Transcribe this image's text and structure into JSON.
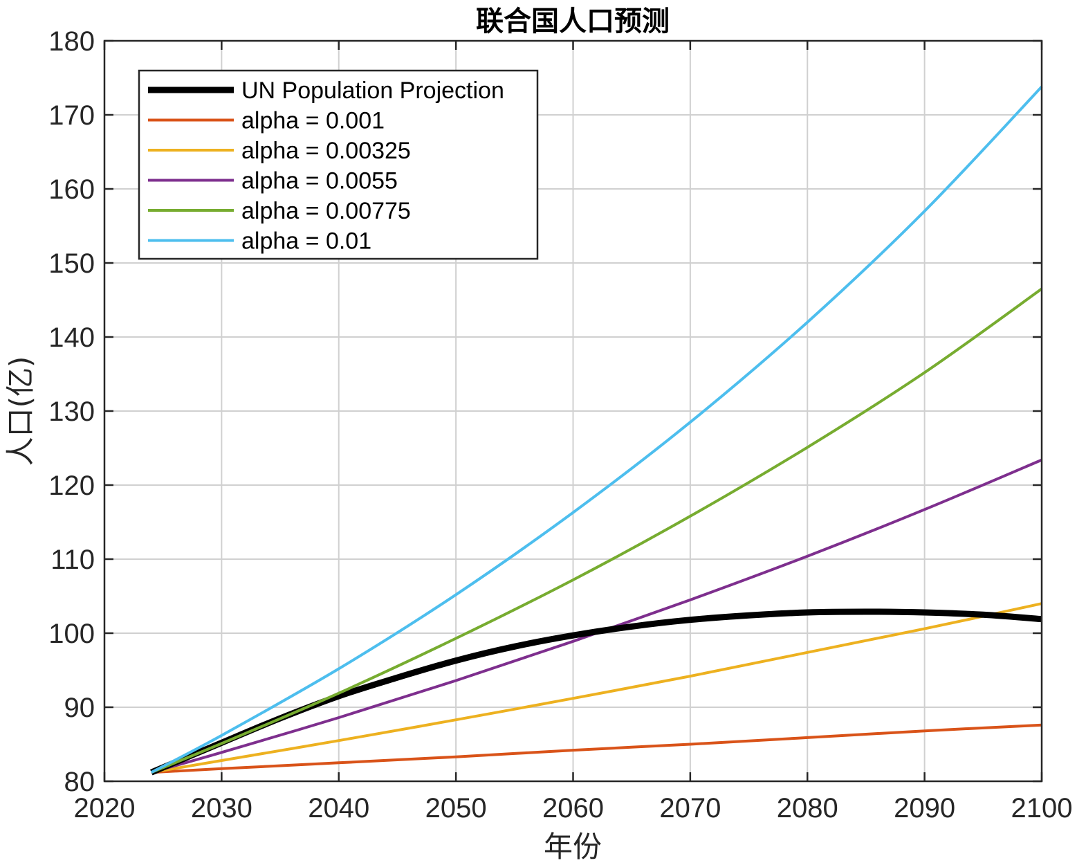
{
  "chart_data": {
    "type": "line",
    "title": "联合国人口预测",
    "xlabel": "年份",
    "ylabel": "人口(亿)",
    "xlim": [
      2020,
      2100
    ],
    "ylim": [
      80,
      180
    ],
    "xticks": [
      2020,
      2030,
      2040,
      2050,
      2060,
      2070,
      2080,
      2090,
      2100
    ],
    "yticks": [
      80,
      90,
      100,
      110,
      120,
      130,
      140,
      150,
      160,
      170,
      180
    ],
    "grid": true,
    "legend_position": "top-left",
    "series": [
      {
        "name": "UN Population Projection",
        "color": "#000000",
        "thick": true,
        "x": [
          2024,
          2030,
          2035,
          2040,
          2045,
          2050,
          2055,
          2060,
          2065,
          2070,
          2075,
          2080,
          2085,
          2090,
          2095,
          2100
        ],
        "y": [
          81.2,
          85.2,
          88.5,
          91.5,
          94.0,
          96.3,
          98.2,
          99.7,
          100.9,
          101.8,
          102.4,
          102.8,
          102.9,
          102.8,
          102.5,
          101.9
        ]
      },
      {
        "name": "alpha = 0.001",
        "color": "#d95319",
        "x": [
          2024,
          2030,
          2040,
          2050,
          2060,
          2070,
          2080,
          2090,
          2100
        ],
        "y": [
          81.2,
          81.7,
          82.5,
          83.3,
          84.2,
          85.0,
          85.9,
          86.8,
          87.6
        ]
      },
      {
        "name": "alpha = 0.00325",
        "color": "#edb120",
        "x": [
          2024,
          2030,
          2040,
          2050,
          2060,
          2070,
          2080,
          2090,
          2100
        ],
        "y": [
          81.2,
          82.8,
          85.5,
          88.3,
          91.2,
          94.2,
          97.4,
          100.6,
          104.0
        ]
      },
      {
        "name": "alpha = 0.0055",
        "color": "#7e2f8e",
        "x": [
          2024,
          2030,
          2040,
          2050,
          2060,
          2070,
          2080,
          2090,
          2100
        ],
        "y": [
          81.2,
          83.9,
          88.6,
          93.6,
          98.9,
          104.5,
          110.4,
          116.7,
          123.4
        ]
      },
      {
        "name": "alpha = 0.00775",
        "color": "#77ac30",
        "x": [
          2024,
          2030,
          2040,
          2050,
          2060,
          2070,
          2080,
          2090,
          2100
        ],
        "y": [
          81.2,
          85.1,
          91.9,
          99.3,
          107.2,
          115.8,
          125.1,
          135.2,
          146.5
        ]
      },
      {
        "name": "alpha = 0.01",
        "color": "#4dbeee",
        "x": [
          2024,
          2030,
          2040,
          2050,
          2060,
          2070,
          2080,
          2090,
          2100
        ],
        "y": [
          81.2,
          86.2,
          95.2,
          105.2,
          116.3,
          128.5,
          142.0,
          157.0,
          173.8
        ]
      }
    ]
  }
}
